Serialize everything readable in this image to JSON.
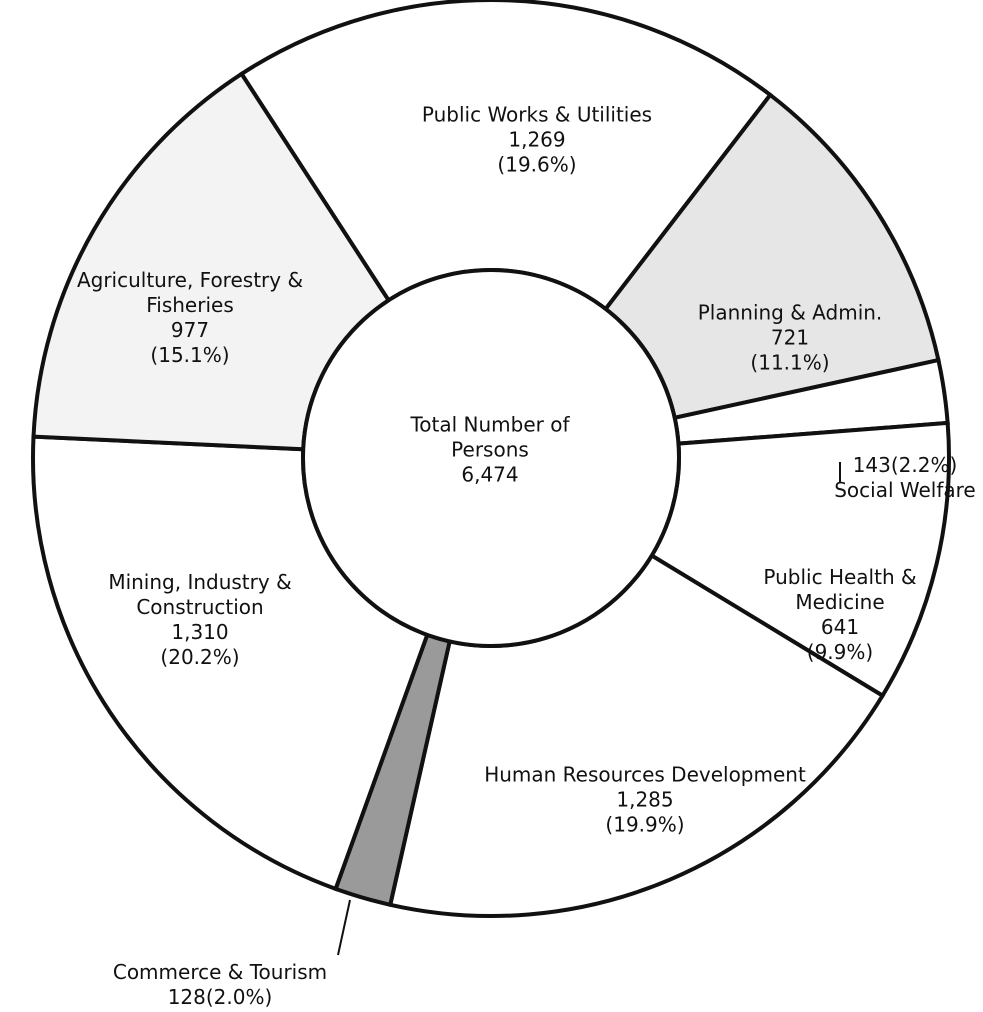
{
  "chart_data": {
    "type": "donut",
    "categories": [
      "Public Works & Utilities",
      "Planning & Admin.",
      "Social Welfare",
      "Public Health & Medicine",
      "Human Resources Development",
      "Commerce & Tourism",
      "Mining, Industry & Construction",
      "Agriculture, Forestry & Fisheries"
    ],
    "values": [
      1269,
      721,
      143,
      641,
      1285,
      128,
      1310,
      977
    ],
    "value_labels": [
      "1,269",
      "721",
      "143",
      "641",
      "1,285",
      "128",
      "1,310",
      "977"
    ],
    "percents": [
      19.6,
      11.1,
      2.2,
      9.9,
      19.9,
      2.0,
      20.2,
      15.1
    ],
    "percent_labels": [
      "(19.6%)",
      "(11.1%)",
      "(2.2%)",
      "(9.9%)",
      "(19.9%)",
      "(2.0%)",
      "(20.2%)",
      "(15.1%)"
    ],
    "colors": [
      "#ffffff",
      "#e6e6e6",
      "#ffffff",
      "#ffffff",
      "#ffffff",
      "#9a9a9a",
      "#ffffff",
      "#f3f3f3"
    ],
    "center_text": "Total Number of Persons",
    "total": 6474,
    "total_label": "6,474"
  }
}
